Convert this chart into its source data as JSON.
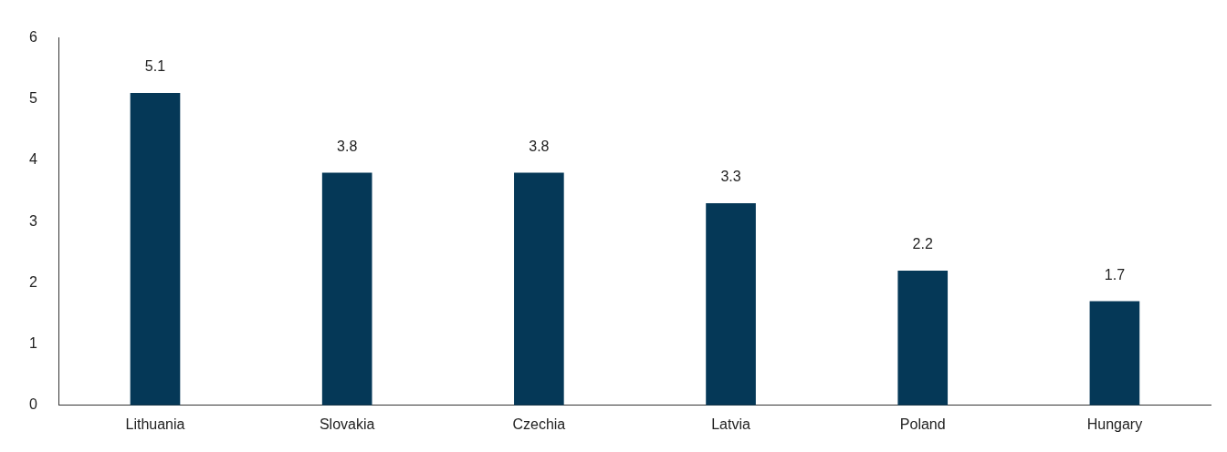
{
  "chart_data": {
    "type": "bar",
    "categories": [
      "Lithuania",
      "Slovakia",
      "Czechia",
      "Latvia",
      "Poland",
      "Hungary"
    ],
    "values": [
      5.1,
      3.8,
      3.8,
      3.3,
      2.2,
      1.7
    ],
    "color": "#053857",
    "ylim": [
      0,
      6
    ],
    "yticks": [
      0,
      1,
      2,
      3,
      4,
      5,
      6
    ],
    "grid": false,
    "legend": false,
    "data_labels": true
  }
}
